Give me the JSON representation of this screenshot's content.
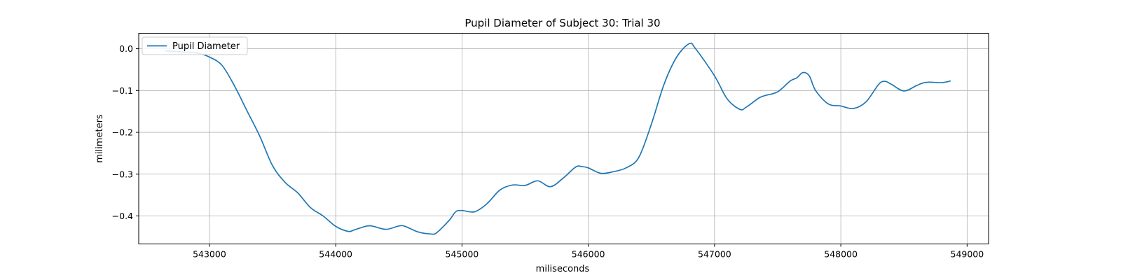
{
  "chart_data": {
    "type": "line",
    "title": "Pupil Diameter of Subject 30: Trial 30",
    "xlabel": "miliseconds",
    "ylabel": "milimeters",
    "xlim": [
      542440,
      549170
    ],
    "ylim": [
      -0.467,
      0.037
    ],
    "xticks": [
      543000,
      544000,
      545000,
      546000,
      547000,
      548000,
      549000
    ],
    "yticks": [
      0.0,
      -0.1,
      -0.2,
      -0.3,
      -0.4
    ],
    "xtick_labels": [
      "543000",
      "544000",
      "545000",
      "546000",
      "547000",
      "548000",
      "549000"
    ],
    "ytick_labels": [
      "0.0",
      "−0.1",
      "−0.2",
      "−0.3",
      "−0.4"
    ],
    "grid": true,
    "legend": {
      "position": "top-left",
      "entries": [
        "Pupil Diameter"
      ]
    },
    "colors": {
      "line": "#1f77b4"
    },
    "series": [
      {
        "name": "Pupil Diameter",
        "x": [
          542650,
          542800,
          542900,
          543000,
          543100,
          543200,
          543300,
          543400,
          543500,
          543600,
          543700,
          543800,
          543900,
          544000,
          544100,
          544150,
          544250,
          544300,
          544400,
          544500,
          544550,
          544650,
          544750,
          544800,
          544900,
          544950,
          545000,
          545100,
          545200,
          545300,
          545400,
          545500,
          545600,
          545700,
          545800,
          545900,
          545950,
          546000,
          546100,
          546200,
          546300,
          546400,
          546500,
          546600,
          546700,
          546800,
          546850,
          547000,
          547100,
          547200,
          547250,
          547350,
          547400,
          547500,
          547600,
          547650,
          547700,
          547750,
          547800,
          547900,
          548000,
          548100,
          548200,
          548300,
          548350,
          548400,
          548500,
          548600,
          548650,
          548700,
          548800,
          548870
        ],
        "y": [
          -0.005,
          -0.008,
          -0.01,
          -0.02,
          -0.04,
          -0.09,
          -0.15,
          -0.21,
          -0.28,
          -0.32,
          -0.345,
          -0.38,
          -0.4,
          -0.425,
          -0.437,
          -0.433,
          -0.424,
          -0.425,
          -0.432,
          -0.424,
          -0.425,
          -0.438,
          -0.443,
          -0.44,
          -0.41,
          -0.39,
          -0.387,
          -0.39,
          -0.37,
          -0.338,
          -0.326,
          -0.327,
          -0.316,
          -0.33,
          -0.31,
          -0.283,
          -0.282,
          -0.285,
          -0.298,
          -0.294,
          -0.285,
          -0.26,
          -0.18,
          -0.085,
          -0.02,
          0.012,
          0.0,
          -0.065,
          -0.12,
          -0.145,
          -0.14,
          -0.118,
          -0.112,
          -0.103,
          -0.077,
          -0.07,
          -0.057,
          -0.065,
          -0.1,
          -0.132,
          -0.137,
          -0.143,
          -0.127,
          -0.085,
          -0.078,
          -0.085,
          -0.101,
          -0.088,
          -0.082,
          -0.08,
          -0.081,
          -0.077
        ]
      }
    ]
  }
}
